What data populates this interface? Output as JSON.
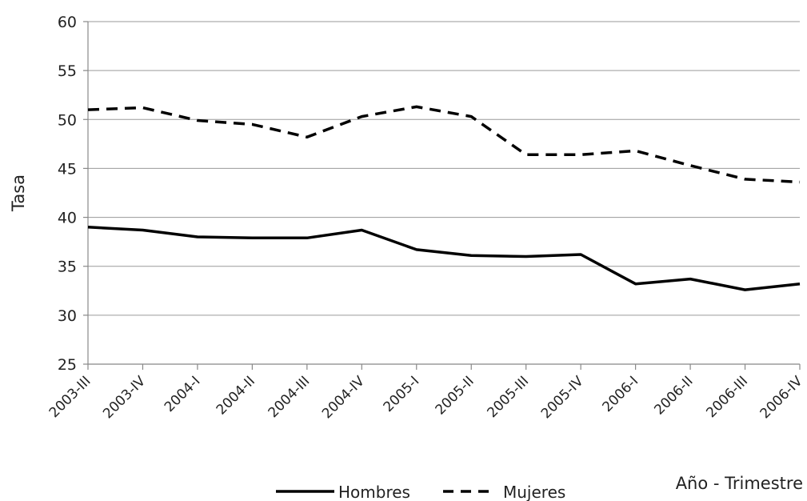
{
  "chart_data": {
    "type": "line",
    "title": "",
    "xlabel": "Año - Trimestre",
    "ylabel": "Tasa",
    "ylim": [
      25,
      60
    ],
    "yticks": [
      25,
      30,
      35,
      40,
      45,
      50,
      55,
      60
    ],
    "grid": "horizontal",
    "legend_position": "bottom",
    "categories": [
      "2003-III",
      "2003-IV",
      "2004-I",
      "2004-II",
      "2004-III",
      "2004-IV",
      "2005-I",
      "2005-II",
      "2005-III",
      "2005-IV",
      "2006-I",
      "2006-II",
      "2006-III",
      "2006-IV"
    ],
    "series": [
      {
        "name": "Hombres",
        "style": "solid",
        "color": "#000000",
        "values": [
          39.0,
          38.7,
          38.0,
          37.9,
          37.9,
          38.7,
          36.7,
          36.1,
          36.0,
          36.2,
          33.2,
          33.7,
          32.6,
          33.2
        ]
      },
      {
        "name": "Mujeres",
        "style": "dashed",
        "color": "#000000",
        "values": [
          51.0,
          51.2,
          49.9,
          49.5,
          48.2,
          50.3,
          51.3,
          50.3,
          46.4,
          46.4,
          46.8,
          45.3,
          43.9,
          43.6
        ]
      }
    ]
  }
}
